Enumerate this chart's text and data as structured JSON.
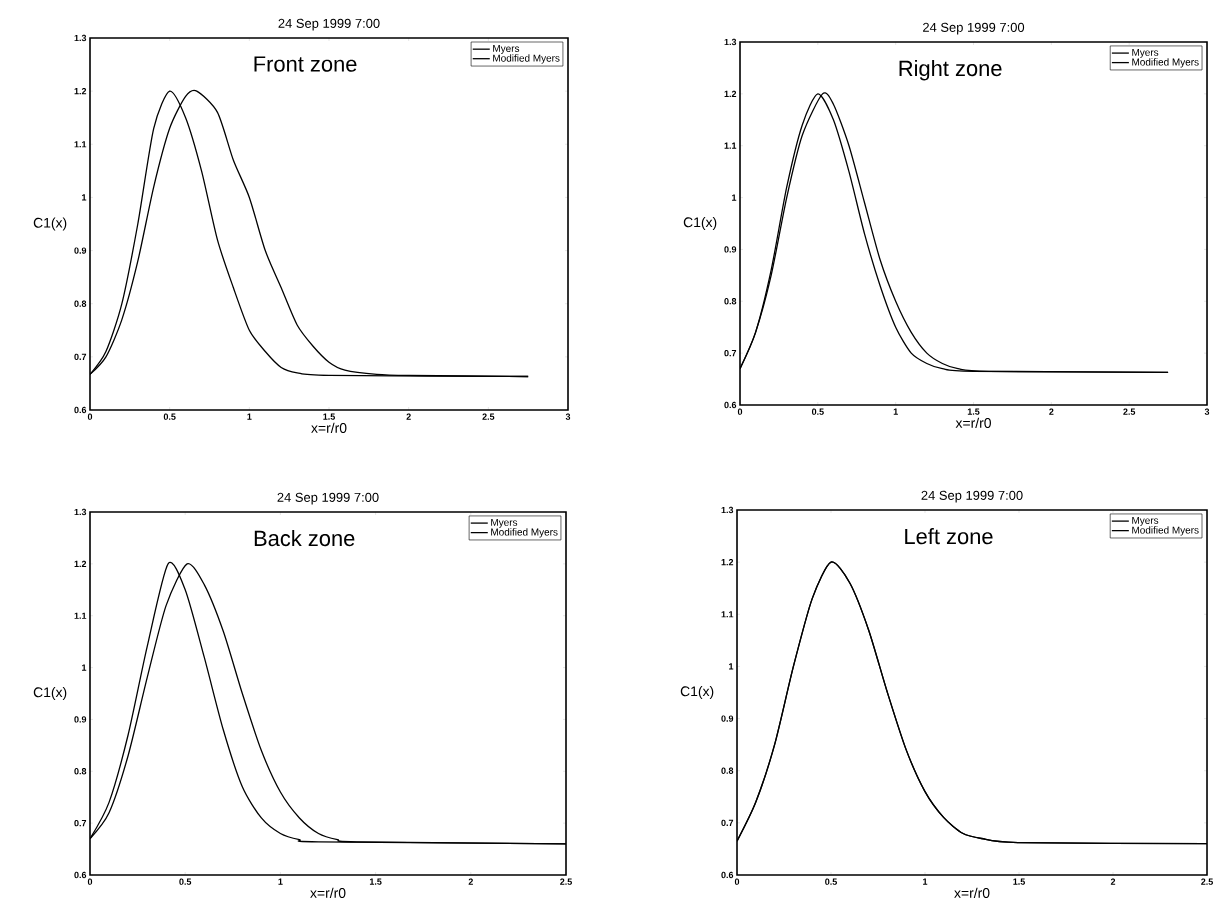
{
  "chart_data": [
    {
      "type": "line",
      "title": "24 Sep 1999  7:00",
      "xlabel": "x=r/r0",
      "ylabel": "C1(x)",
      "annotations": [
        "Front zone"
      ],
      "xlim": [
        0,
        3
      ],
      "ylim": [
        0.6,
        1.3
      ],
      "xticks": [
        0,
        0.5,
        1,
        1.5,
        2,
        2.5,
        3
      ],
      "yticks": [
        0.6,
        0.7,
        0.8,
        0.9,
        1,
        1.1,
        1.2,
        1.3
      ],
      "legend": "top right",
      "grid": false,
      "marker": "none",
      "line_style": "solid",
      "series": [
        {
          "name": "Myers",
          "color": "#000000",
          "x": [
            0,
            0.1,
            0.2,
            0.3,
            0.4,
            0.5,
            0.6,
            0.7,
            0.8,
            0.9,
            1.0,
            1.1,
            1.2,
            1.3,
            1.5,
            2.75
          ],
          "values": [
            0.667,
            0.71,
            0.8,
            0.95,
            1.13,
            1.2,
            1.15,
            1.05,
            0.92,
            0.83,
            0.75,
            0.71,
            0.68,
            0.67,
            0.665,
            0.663
          ]
        },
        {
          "name": "Modified Myers",
          "color": "#000000",
          "x": [
            0,
            0.1,
            0.2,
            0.3,
            0.4,
            0.5,
            0.6,
            0.67,
            0.8,
            0.9,
            1.0,
            1.1,
            1.2,
            1.3,
            1.4,
            1.5,
            1.6,
            1.8,
            2.0,
            2.75
          ],
          "values": [
            0.667,
            0.7,
            0.77,
            0.88,
            1.02,
            1.13,
            1.19,
            1.2,
            1.16,
            1.07,
            1.0,
            0.9,
            0.83,
            0.76,
            0.72,
            0.69,
            0.675,
            0.667,
            0.665,
            0.663
          ]
        }
      ]
    },
    {
      "type": "line",
      "title": "24 Sep 1999  7:00",
      "xlabel": "x=r/r0",
      "ylabel": "C1(x)",
      "annotations": [
        "Right zone"
      ],
      "xlim": [
        0,
        3
      ],
      "ylim": [
        0.6,
        1.3
      ],
      "xticks": [
        0,
        0.5,
        1,
        1.5,
        2,
        2.5,
        3
      ],
      "yticks": [
        0.6,
        0.7,
        0.8,
        0.9,
        1,
        1.1,
        1.2,
        1.3
      ],
      "legend": "top right",
      "grid": false,
      "marker": "none",
      "line_style": "solid",
      "series": [
        {
          "name": "Myers",
          "color": "#000000",
          "x": [
            0,
            0.1,
            0.2,
            0.3,
            0.4,
            0.5,
            0.6,
            0.7,
            0.8,
            0.9,
            1.0,
            1.1,
            1.2,
            1.3,
            1.5,
            2.75
          ],
          "values": [
            0.67,
            0.74,
            0.86,
            1.02,
            1.14,
            1.2,
            1.15,
            1.05,
            0.93,
            0.83,
            0.75,
            0.7,
            0.68,
            0.67,
            0.665,
            0.663
          ]
        },
        {
          "name": "Modified Myers",
          "color": "#000000",
          "x": [
            0,
            0.1,
            0.2,
            0.3,
            0.4,
            0.53,
            0.6,
            0.7,
            0.8,
            0.9,
            1.0,
            1.1,
            1.2,
            1.3,
            1.4,
            1.6,
            2.75
          ],
          "values": [
            0.67,
            0.74,
            0.85,
            1.0,
            1.12,
            1.2,
            1.18,
            1.1,
            0.99,
            0.88,
            0.8,
            0.74,
            0.7,
            0.68,
            0.67,
            0.665,
            0.663
          ]
        }
      ]
    },
    {
      "type": "line",
      "title": "24 Sep 1999 7:00",
      "xlabel": "x=r/r0",
      "ylabel": "C1(x)",
      "annotations": [
        "Back zone"
      ],
      "xlim": [
        0,
        2.5
      ],
      "ylim": [
        0.6,
        1.3
      ],
      "xticks": [
        0,
        0.5,
        1,
        1.5,
        2,
        2.5
      ],
      "yticks": [
        0.6,
        0.7,
        0.8,
        0.9,
        1,
        1.1,
        1.2,
        1.3
      ],
      "legend": "top right",
      "grid": false,
      "marker": "none",
      "line_style": "solid",
      "series": [
        {
          "name": "Myers",
          "color": "#000000",
          "x": [
            0,
            0.1,
            0.2,
            0.3,
            0.41,
            0.5,
            0.6,
            0.7,
            0.8,
            0.9,
            1.0,
            1.1,
            1.2,
            2.5
          ],
          "values": [
            0.67,
            0.74,
            0.87,
            1.04,
            1.2,
            1.15,
            1.02,
            0.88,
            0.77,
            0.71,
            0.68,
            0.668,
            0.664,
            0.66
          ]
        },
        {
          "name": "Modified Myers",
          "color": "#000000",
          "x": [
            0,
            0.1,
            0.2,
            0.3,
            0.4,
            0.51,
            0.6,
            0.7,
            0.8,
            0.9,
            1.0,
            1.1,
            1.2,
            1.3,
            1.4,
            2.5
          ],
          "values": [
            0.67,
            0.72,
            0.83,
            0.98,
            1.12,
            1.2,
            1.16,
            1.07,
            0.95,
            0.84,
            0.76,
            0.71,
            0.68,
            0.668,
            0.664,
            0.66
          ]
        }
      ]
    },
    {
      "type": "line",
      "title": "24 Sep 1999  7:00",
      "xlabel": "x=r/r0",
      "ylabel": "C1(x)",
      "annotations": [
        "Left zone"
      ],
      "xlim": [
        0,
        2.5
      ],
      "ylim": [
        0.6,
        1.3
      ],
      "xticks": [
        0,
        0.5,
        1,
        1.5,
        2,
        2.5
      ],
      "yticks": [
        0.6,
        0.7,
        0.8,
        0.9,
        1,
        1.1,
        1.2,
        1.3
      ],
      "legend": "top right",
      "grid": false,
      "marker": "none",
      "line_style": "solid",
      "series": [
        {
          "name": "Myers",
          "color": "#000000",
          "x": [
            0,
            0.1,
            0.2,
            0.3,
            0.4,
            0.5,
            0.6,
            0.7,
            0.8,
            0.9,
            1.0,
            1.1,
            1.2,
            1.3,
            1.5,
            2.5
          ],
          "values": [
            0.665,
            0.74,
            0.85,
            1.0,
            1.13,
            1.2,
            1.16,
            1.07,
            0.95,
            0.84,
            0.76,
            0.71,
            0.68,
            0.67,
            0.662,
            0.66
          ]
        },
        {
          "name": "Modified Myers",
          "color": "#000000",
          "x": [
            0,
            0.1,
            0.2,
            0.3,
            0.4,
            0.5,
            0.6,
            0.7,
            0.8,
            0.9,
            1.0,
            1.1,
            1.2,
            1.3,
            1.5,
            2.5
          ],
          "values": [
            0.665,
            0.74,
            0.85,
            1.0,
            1.13,
            1.2,
            1.16,
            1.07,
            0.95,
            0.84,
            0.76,
            0.71,
            0.68,
            0.67,
            0.662,
            0.66
          ]
        }
      ]
    }
  ]
}
